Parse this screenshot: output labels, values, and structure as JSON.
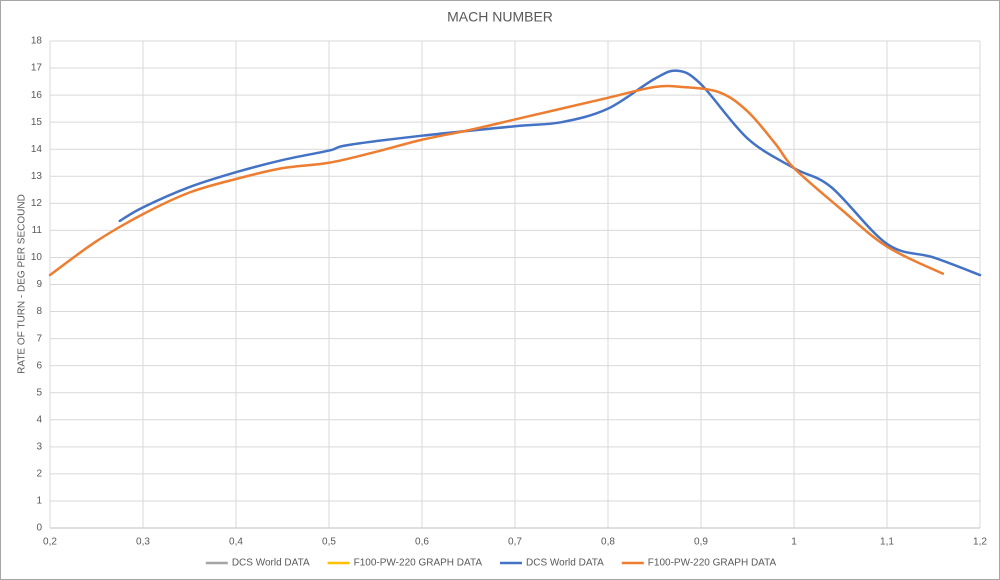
{
  "chart_data": {
    "type": "line",
    "title": "MACH NUMBER",
    "y_label": "RATE  OF TURN  - DEG PER SECOUND",
    "xlim": [
      0.2,
      1.2
    ],
    "ylim": [
      0,
      18
    ],
    "xticks": [
      {
        "value": 0.2,
        "label": "0,2"
      },
      {
        "value": 0.3,
        "label": "0,3"
      },
      {
        "value": 0.4,
        "label": "0,4"
      },
      {
        "value": 0.5,
        "label": "0,5"
      },
      {
        "value": 0.6,
        "label": "0,6"
      },
      {
        "value": 0.7,
        "label": "0,7"
      },
      {
        "value": 0.8,
        "label": "0,8"
      },
      {
        "value": 0.9,
        "label": "0,9"
      },
      1,
      {
        "value": 1.1,
        "label": "1,1"
      },
      {
        "value": 1.2,
        "label": "1,2"
      }
    ],
    "yticks": [
      0,
      1,
      2,
      3,
      4,
      5,
      6,
      7,
      8,
      9,
      10,
      11,
      12,
      13,
      14,
      15,
      16,
      17,
      18
    ],
    "grid": true,
    "legend": "bottom",
    "smooth": true,
    "series": [
      {
        "name": "DCS World DATA",
        "color": "#a5a5a5",
        "x": [],
        "values": []
      },
      {
        "name": "F100-PW-220 GRAPH DATA",
        "color": "#ffc000",
        "x": [],
        "values": []
      },
      {
        "name": "DCS World DATA",
        "color": "#4472c4",
        "x": [
          0.275,
          0.3,
          0.35,
          0.4,
          0.45,
          0.5,
          0.52,
          0.6,
          0.7,
          0.75,
          0.8,
          0.85,
          0.875,
          0.9,
          0.95,
          1.0,
          1.04,
          1.1,
          1.15,
          1.2
        ],
        "values": [
          11.35,
          11.85,
          12.6,
          13.15,
          13.6,
          13.95,
          14.15,
          14.5,
          14.85,
          15.0,
          15.5,
          16.6,
          16.9,
          16.4,
          14.4,
          13.3,
          12.6,
          10.5,
          10.0,
          9.35
        ]
      },
      {
        "name": "F100-PW-220 GRAPH DATA",
        "color": "#ed7d31",
        "x": [
          0.2,
          0.25,
          0.3,
          0.35,
          0.4,
          0.45,
          0.5,
          0.55,
          0.6,
          0.65,
          0.7,
          0.75,
          0.8,
          0.85,
          0.88,
          0.92,
          0.95,
          0.98,
          1.0,
          1.05,
          1.1,
          1.16
        ],
        "values": [
          9.35,
          10.6,
          11.6,
          12.4,
          12.9,
          13.3,
          13.5,
          13.9,
          14.35,
          14.7,
          15.1,
          15.5,
          15.9,
          16.3,
          16.3,
          16.1,
          15.4,
          14.2,
          13.3,
          11.8,
          10.4,
          9.4
        ]
      }
    ]
  }
}
